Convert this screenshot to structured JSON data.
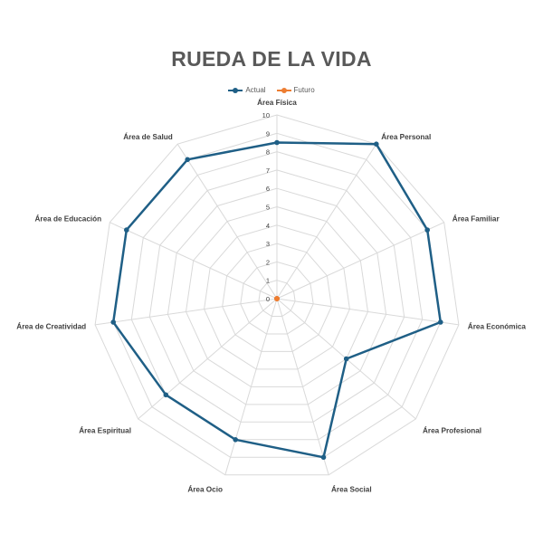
{
  "chart_data": {
    "type": "radar",
    "title": "RUEDA DE LA VIDA",
    "categories": [
      "Área Física",
      "Área Personal",
      "Área Familiar",
      "Área Económica",
      "Área Profesional",
      "Área Social",
      "Área Ocio",
      "Área Espiritual",
      "Área de Creatividad",
      "Área de Educación",
      "Área de Salud"
    ],
    "series": [
      {
        "name": "Actual",
        "color": "#1f5f86",
        "values": [
          8.5,
          10,
          9,
          9,
          5,
          9,
          8,
          8,
          9,
          9,
          9
        ]
      },
      {
        "name": "Futuro",
        "color": "#ed7d31",
        "values": [
          0,
          0,
          0,
          0,
          0,
          0,
          0,
          0,
          0,
          0,
          0
        ]
      }
    ],
    "ticks": [
      "0",
      "1",
      "2",
      "3",
      "4",
      "5",
      "6",
      "7",
      "8",
      "9",
      "10"
    ],
    "rlim": [
      0,
      10
    ],
    "grid": true,
    "legend_position": "top"
  }
}
